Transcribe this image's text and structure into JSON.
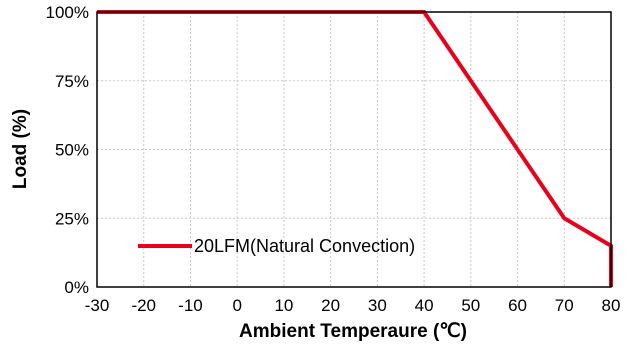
{
  "chart_data": {
    "type": "line",
    "xlabel": "Ambient Temperaure (℃)",
    "ylabel": "Load (%)",
    "xlim": [
      -30,
      80
    ],
    "ylim": [
      0,
      100
    ],
    "x_ticks": [
      -30,
      -20,
      -10,
      0,
      10,
      20,
      30,
      40,
      50,
      60,
      70,
      80
    ],
    "y_ticks": [
      "0%",
      "25%",
      "50%",
      "75%",
      "100%"
    ],
    "y_tick_values": [
      0,
      25,
      50,
      75,
      100
    ],
    "grid": true,
    "legend_position": "bottom-left",
    "series": [
      {
        "name": "20LFM(Natural Convection)",
        "color": "#e8001c",
        "x": [
          -30,
          40,
          70,
          80,
          80
        ],
        "y": [
          100,
          100,
          25,
          15,
          0
        ]
      }
    ]
  }
}
